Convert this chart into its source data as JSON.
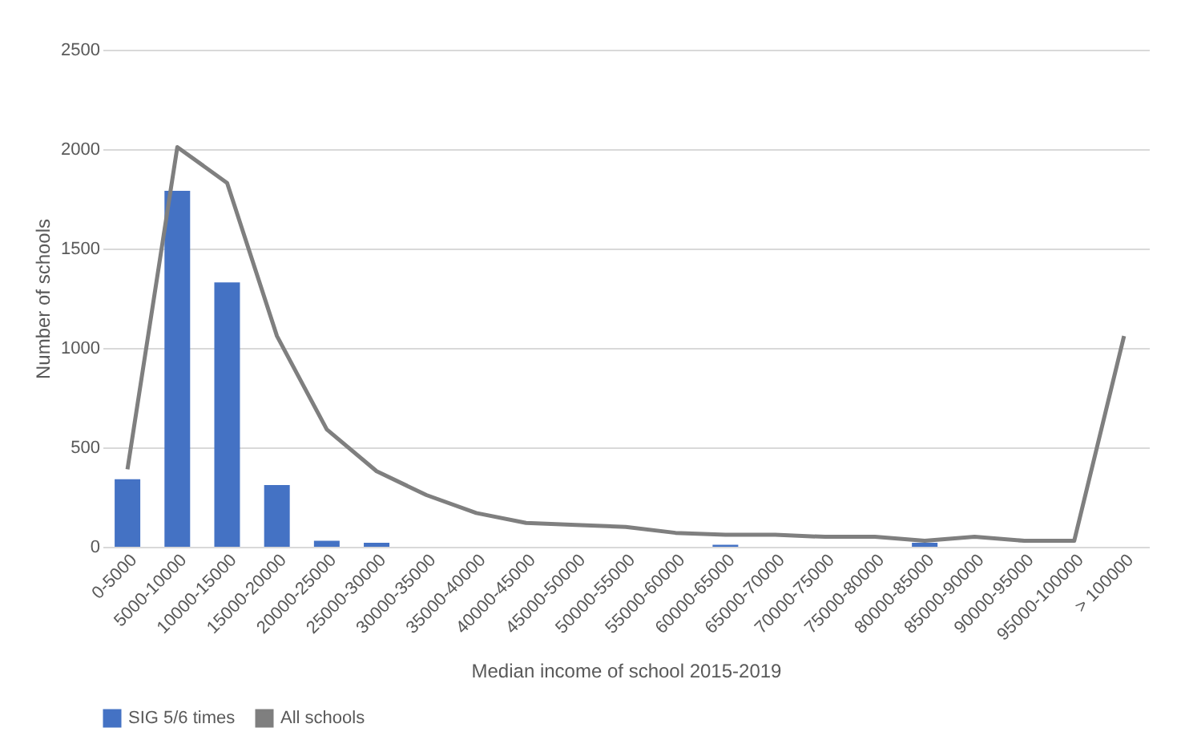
{
  "chart_data": {
    "type": "bar",
    "xlabel": "Median income of school 2015-2019",
    "ylabel": "Number of schools",
    "categories": [
      "0-5000",
      "5000-10000",
      "10000-15000",
      "15000-20000",
      "20000-25000",
      "25000-30000",
      "30000-35000",
      "35000-40000",
      "40000-45000",
      "45000-50000",
      "50000-55000",
      "55000-60000",
      "60000-65000",
      "65000-70000",
      "70000-75000",
      "75000-80000",
      "80000-85000",
      "85000-90000",
      "90000-95000",
      "95000-100000",
      "> 100000"
    ],
    "series": [
      {
        "name": "SIG 5/6 times",
        "color": "#4472c4",
        "values": [
          340,
          1790,
          1330,
          310,
          30,
          20,
          0,
          0,
          0,
          0,
          0,
          0,
          10,
          0,
          0,
          0,
          20,
          0,
          0,
          0,
          0
        ]
      },
      {
        "name": "All schools",
        "type": "line",
        "color": "#7f7f7f",
        "values": [
          390,
          2010,
          1830,
          1060,
          590,
          380,
          260,
          170,
          120,
          110,
          100,
          70,
          60,
          60,
          50,
          50,
          30,
          50,
          30,
          30,
          1060
        ]
      }
    ],
    "ylim": [
      0,
      2500
    ],
    "yticks": [
      0,
      500,
      1000,
      1500,
      2000,
      2500
    ],
    "grid": "y",
    "legend": "bottom",
    "marker": "none",
    "line_style": "solid"
  }
}
